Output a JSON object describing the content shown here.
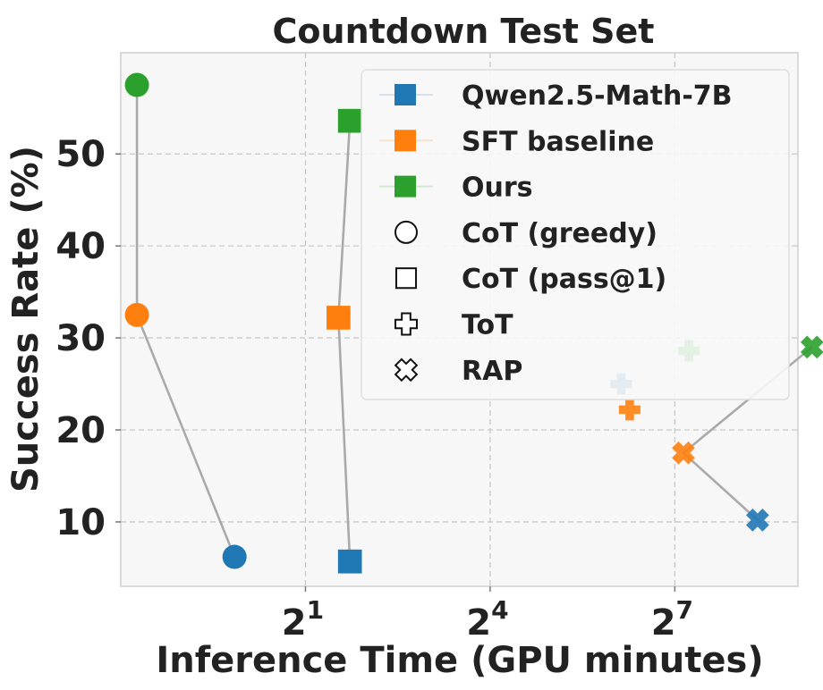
{
  "chart_data": {
    "type": "scatter",
    "title": "Countdown Test Set",
    "xlabel": "Inference Time (GPU minutes)",
    "ylabel": "Success Rate (%)",
    "x_scale": "log2",
    "xlim": [
      0.25,
      512
    ],
    "ylim": [
      3.0,
      61.0
    ],
    "x_ticks": [
      {
        "value": 2,
        "base": "2",
        "exp": "1"
      },
      {
        "value": 16,
        "base": "2",
        "exp": "4"
      },
      {
        "value": 128,
        "base": "2",
        "exp": "7"
      }
    ],
    "y_ticks": [
      10,
      20,
      30,
      40,
      50
    ],
    "grid": true,
    "legend_position": "top-right",
    "series": [
      {
        "name": "Qwen2.5-Math-7B",
        "color": "#1f77b4"
      },
      {
        "name": "SFT baseline",
        "color": "#ff7f0e"
      },
      {
        "name": "Ours",
        "color": "#2ca02c"
      }
    ],
    "methods": [
      {
        "name": "CoT (greedy)",
        "marker": "circle"
      },
      {
        "name": "CoT (pass@1)",
        "marker": "square"
      },
      {
        "name": "ToT",
        "marker": "plus"
      },
      {
        "name": "RAP",
        "marker": "x"
      }
    ],
    "points": [
      {
        "series": "Qwen2.5-Math-7B",
        "method": "CoT (greedy)",
        "x": 0.9,
        "y": 6.2
      },
      {
        "series": "SFT baseline",
        "method": "CoT (greedy)",
        "x": 0.3,
        "y": 32.5
      },
      {
        "series": "Ours",
        "method": "CoT (greedy)",
        "x": 0.3,
        "y": 57.5
      },
      {
        "series": "Qwen2.5-Math-7B",
        "method": "CoT (pass@1)",
        "x": 3.3,
        "y": 5.7
      },
      {
        "series": "SFT baseline",
        "method": "CoT (pass@1)",
        "x": 2.9,
        "y": 32.2
      },
      {
        "series": "Ours",
        "method": "CoT (pass@1)",
        "x": 3.3,
        "y": 53.6
      },
      {
        "series": "Qwen2.5-Math-7B",
        "method": "ToT",
        "x": 70,
        "y": 25.0
      },
      {
        "series": "SFT baseline",
        "method": "ToT",
        "x": 77,
        "y": 22.2
      },
      {
        "series": "Ours",
        "method": "ToT",
        "x": 150,
        "y": 28.6
      },
      {
        "series": "Qwen2.5-Math-7B",
        "method": "RAP",
        "x": 325,
        "y": 10.2
      },
      {
        "series": "SFT baseline",
        "method": "RAP",
        "x": 141,
        "y": 17.5
      },
      {
        "series": "Ours",
        "method": "RAP",
        "x": 600,
        "y": 29.0
      }
    ],
    "connections": [
      [
        "CoT (greedy)",
        [
          "Ours",
          "SFT baseline",
          "Qwen2.5-Math-7B"
        ]
      ],
      [
        "CoT (pass@1)",
        [
          "Ours",
          "SFT baseline",
          "Qwen2.5-Math-7B"
        ]
      ],
      [
        "RAP",
        [
          "Ours",
          "SFT baseline",
          "Qwen2.5-Math-7B"
        ]
      ]
    ]
  }
}
